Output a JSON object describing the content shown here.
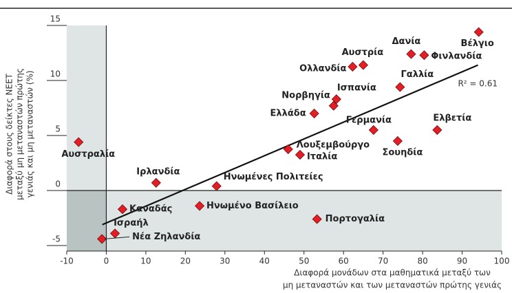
{
  "chart_data": {
    "type": "scatter",
    "xlabel": [
      "Διαφορά μονάδων στα μαθηματικά μεταξύ των",
      "μη μεταναστών και των μεταναστών πρώτης γενιάς"
    ],
    "ylabel": [
      "Διαφορά στους δείκτες NEET",
      "μεταξύ μη μεταναστών πρώτης",
      "γενιάς και μη μεταναστών (%)"
    ],
    "points": [
      {
        "label": "Αυστραλία",
        "x": -7.0,
        "y": 4.4
      },
      {
        "label": "Ιρλανδία",
        "x": 12.6,
        "y": 0.7
      },
      {
        "label": "Ηνωμένες Πολιτείες",
        "x": 27.9,
        "y": 0.4
      },
      {
        "label": "Καναδάς",
        "x": 4.1,
        "y": -1.7
      },
      {
        "label": "Ισραήλ",
        "x": 2.2,
        "y": -3.9
      },
      {
        "label": "Νέα Ζηλανδία",
        "x": -1.1,
        "y": -4.4
      },
      {
        "label": "Ηνωμένο Βασίλειο",
        "x": 23.6,
        "y": -1.4
      },
      {
        "label": "Πορτογαλία",
        "x": 53.3,
        "y": -2.6
      },
      {
        "label": "Λουξεμβούργο",
        "x": 46.0,
        "y": 3.75
      },
      {
        "label": "Ιταλία",
        "x": 49.0,
        "y": 3.25
      },
      {
        "label": "Ελλάδα",
        "x": 52.6,
        "y": 7.0
      },
      {
        "label": "Νορβηγία",
        "x": 57.5,
        "y": 7.7
      },
      {
        "label": "Ισπανία",
        "x": 58.2,
        "y": 8.3
      },
      {
        "label": "Γερμανία",
        "x": 67.6,
        "y": 5.5
      },
      {
        "label": "Ολλανδία",
        "x": 62.3,
        "y": 11.25
      },
      {
        "label": "Αυστρία",
        "x": 65.0,
        "y": 11.4
      },
      {
        "label": "Γαλλία",
        "x": 74.3,
        "y": 9.4
      },
      {
        "label": "Δανία",
        "x": 77.1,
        "y": 12.4
      },
      {
        "label": "Φινλανδία",
        "x": 80.4,
        "y": 12.3
      },
      {
        "label": "Βέλγιο",
        "x": 94.2,
        "y": 14.4
      },
      {
        "label": "Σουηδία",
        "x": 73.7,
        "y": 4.5
      },
      {
        "label": "Ελβετία",
        "x": 83.7,
        "y": 5.5
      }
    ],
    "color": "#e31e24",
    "trendline": {
      "x": [
        -1,
        94
      ],
      "y": [
        -3.1,
        11.4
      ]
    },
    "r2_label": "R² = 0.61",
    "xlim": [
      -10,
      100
    ],
    "xticks": [
      -10,
      0,
      10,
      20,
      30,
      40,
      50,
      60,
      70,
      80,
      90,
      100
    ],
    "ylim": [
      -5.5,
      15
    ],
    "yticks": [
      -5,
      0,
      5,
      10,
      15
    ],
    "shade_negative": true
  }
}
